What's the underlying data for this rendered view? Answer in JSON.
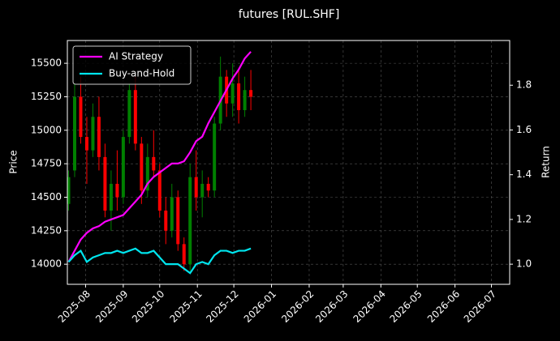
{
  "chart_data": {
    "type": "candlestick",
    "title": "futures [RUL.SHF]",
    "y_label": "Price",
    "y2_label": "Return",
    "x": [
      "2025-07-18",
      "2025-07-23",
      "2025-07-28",
      "2025-08-02",
      "2025-08-07",
      "2025-08-12",
      "2025-08-17",
      "2025-08-22",
      "2025-08-27",
      "2025-09-01",
      "2025-09-06",
      "2025-09-11",
      "2025-09-16",
      "2025-09-21",
      "2025-09-26",
      "2025-10-01",
      "2025-10-06",
      "2025-10-11",
      "2025-10-16",
      "2025-10-21",
      "2025-10-26",
      "2025-10-31",
      "2025-11-05",
      "2025-11-10",
      "2025-11-15",
      "2025-11-20",
      "2025-11-25",
      "2025-11-30",
      "2025-12-05",
      "2025-12-10",
      "2025-12-15"
    ],
    "open": [
      14450,
      14700,
      15250,
      14950,
      14850,
      15100,
      14800,
      14400,
      14600,
      14500,
      14950,
      15300,
      14900,
      14550,
      14800,
      14700,
      14400,
      14250,
      14500,
      14150,
      14000,
      14650,
      14500,
      14600,
      14550,
      15050,
      15400,
      15200,
      15350,
      15150,
      15300
    ],
    "high": [
      14700,
      15350,
      15400,
      15100,
      15200,
      15250,
      14900,
      14700,
      14850,
      15000,
      15350,
      15400,
      14950,
      14900,
      15000,
      14750,
      14500,
      14600,
      14550,
      14200,
      14750,
      14850,
      14700,
      14650,
      15100,
      15550,
      15450,
      15500,
      15450,
      15400,
      15450
    ],
    "low": [
      14400,
      14650,
      14900,
      14600,
      14800,
      14700,
      14350,
      14250,
      14400,
      14450,
      14900,
      14850,
      14450,
      14500,
      14650,
      14350,
      14150,
      14200,
      14100,
      13950,
      13950,
      14400,
      14350,
      14500,
      14500,
      15000,
      15100,
      15100,
      15050,
      15100,
      15150
    ],
    "close": [
      14650,
      15250,
      14950,
      14850,
      15100,
      14800,
      14400,
      14600,
      14500,
      14950,
      15300,
      14900,
      14550,
      14800,
      14700,
      14400,
      14250,
      14500,
      14150,
      14000,
      14650,
      14500,
      14600,
      14550,
      15050,
      15400,
      15200,
      15350,
      15150,
      15300,
      15250
    ],
    "up_color": "#008000",
    "down_color": "#ff0000",
    "series": [
      {
        "name": "AI Strategy",
        "color": "#ff00ff",
        "axis": "y2",
        "values": [
          1.01,
          1.06,
          1.11,
          1.14,
          1.16,
          1.17,
          1.19,
          1.2,
          1.21,
          1.22,
          1.25,
          1.28,
          1.31,
          1.36,
          1.39,
          1.41,
          1.43,
          1.45,
          1.45,
          1.46,
          1.5,
          1.55,
          1.57,
          1.63,
          1.68,
          1.73,
          1.78,
          1.83,
          1.87,
          1.92,
          1.95
        ]
      },
      {
        "name": "Buy-and-Hold",
        "color": "#00e5ee",
        "axis": "y2",
        "values": [
          1.01,
          1.04,
          1.06,
          1.01,
          1.03,
          1.04,
          1.05,
          1.05,
          1.06,
          1.05,
          1.06,
          1.07,
          1.05,
          1.05,
          1.06,
          1.03,
          1.0,
          1.0,
          1.0,
          0.98,
          0.96,
          1.0,
          1.01,
          1.0,
          1.04,
          1.06,
          1.06,
          1.05,
          1.06,
          1.06,
          1.07
        ]
      }
    ],
    "xlim": [
      "2025-07-17",
      "2026-07-16"
    ],
    "xticks": [
      {
        "value": "2025-08-01",
        "label": "2025-08"
      },
      {
        "value": "2025-09-01",
        "label": "2025-09"
      },
      {
        "value": "2025-10-01",
        "label": "2025-10"
      },
      {
        "value": "2025-11-01",
        "label": "2025-11"
      },
      {
        "value": "2025-12-01",
        "label": "2025-12"
      },
      {
        "value": "2026-01-01",
        "label": "2026-01"
      },
      {
        "value": "2026-02-01",
        "label": "2026-02"
      },
      {
        "value": "2026-03-01",
        "label": "2026-03"
      },
      {
        "value": "2026-04-01",
        "label": "2026-04"
      },
      {
        "value": "2026-05-01",
        "label": "2026-05"
      },
      {
        "value": "2026-06-01",
        "label": "2026-06"
      },
      {
        "value": "2026-07-01",
        "label": "2026-07"
      }
    ],
    "ylim": [
      13850,
      15670
    ],
    "yticks": [
      14000,
      14250,
      14500,
      14750,
      15000,
      15250,
      15500
    ],
    "y2lim": [
      0.91,
      2.0
    ],
    "y2ticks": [
      {
        "value": 1,
        "label": "1.0"
      },
      1.2,
      1.4,
      1.6,
      1.8
    ],
    "grid": true,
    "legend": "upper-left"
  }
}
